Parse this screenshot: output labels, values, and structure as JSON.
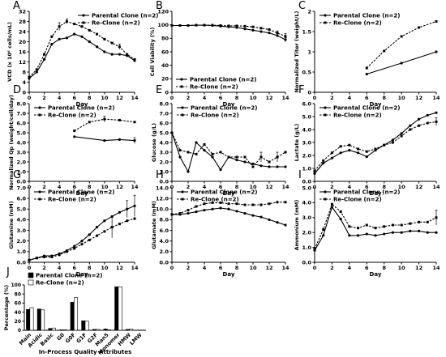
{
  "figure": {
    "legend_parent": "Parental Clone (n=2)",
    "legend_reclone": "Re-Clone (n=2)"
  },
  "chart_data": [
    {
      "panel": "A",
      "type": "line",
      "xlabel": "Day",
      "ylabel": "VCD (x 10⁶ cells/mL)",
      "xlim": [
        0,
        14
      ],
      "ylim": [
        0,
        32
      ],
      "xticks": [
        0,
        2,
        4,
        6,
        8,
        10,
        12,
        14
      ],
      "yticks": [
        0,
        4,
        8,
        12,
        16,
        20,
        24,
        28,
        32
      ],
      "series": [
        {
          "name": "Parental Clone (n=2)",
          "style": "solid",
          "x": [
            0,
            1,
            2,
            3,
            4,
            5,
            6,
            7,
            8,
            9,
            10,
            11,
            12,
            13,
            14
          ],
          "y": [
            5.5,
            8,
            13,
            19,
            21,
            21.5,
            23,
            22,
            20,
            18,
            16,
            15,
            15,
            14.5,
            12.5
          ],
          "err": [
            0,
            0,
            0,
            0,
            0,
            0,
            0,
            0,
            0,
            0,
            0,
            0,
            0,
            0,
            0
          ]
        },
        {
          "name": "Re-Clone (n=2)",
          "style": "dashed",
          "x": [
            0,
            1,
            2,
            3,
            4,
            5,
            6,
            7,
            8,
            9,
            10,
            11,
            12,
            13,
            14
          ],
          "y": [
            6,
            9,
            15,
            22,
            26,
            28,
            27,
            26,
            24.5,
            23,
            21,
            19.5,
            18,
            15,
            13
          ],
          "err": [
            0,
            0,
            0,
            0,
            1.5,
            1,
            0,
            0,
            0,
            0,
            0,
            0,
            1,
            0,
            0
          ]
        }
      ],
      "legend": "top-right"
    },
    {
      "panel": "B",
      "type": "line",
      "xlabel": "Day",
      "ylabel": "Cell Viability (%)",
      "xlim": [
        0,
        14
      ],
      "ylim": [
        0,
        120
      ],
      "xticks": [
        0,
        2,
        4,
        6,
        8,
        10,
        12,
        14
      ],
      "yticks": [
        0,
        20,
        40,
        60,
        80,
        100,
        120
      ],
      "series": [
        {
          "name": "Parental Clone (n=2)",
          "style": "solid",
          "x": [
            0,
            1,
            2,
            3,
            4,
            5,
            6,
            7,
            8,
            9,
            10,
            11,
            12,
            13,
            14
          ],
          "y": [
            99,
            99,
            99,
            99.5,
            99.5,
            99,
            98,
            97,
            96,
            94,
            92,
            90,
            88,
            84,
            78
          ],
          "err": [
            0,
            0,
            0,
            0,
            0,
            0,
            0,
            0,
            0,
            0,
            0,
            0,
            0,
            0,
            3
          ]
        },
        {
          "name": "Re-Clone (n=2)",
          "style": "dashed",
          "x": [
            0,
            1,
            2,
            3,
            4,
            5,
            6,
            7,
            8,
            9,
            10,
            11,
            12,
            13,
            14
          ],
          "y": [
            99,
            99,
            99,
            99.5,
            99.5,
            99.5,
            99,
            98.5,
            98.5,
            98,
            97,
            95,
            93,
            88,
            83
          ],
          "err": [
            0,
            0,
            0,
            0,
            0,
            0,
            0,
            0,
            0,
            0,
            0,
            0,
            0,
            3,
            4
          ]
        }
      ],
      "legend": "bottom-left"
    },
    {
      "panel": "C",
      "type": "line",
      "xlabel": "Day",
      "ylabel": "Normalized Titer (weight/L)",
      "xlim": [
        0,
        14
      ],
      "ylim": [
        0,
        2
      ],
      "xticks": [
        0,
        2,
        4,
        6,
        8,
        10,
        12,
        14
      ],
      "yticks": [
        0,
        0.5,
        1,
        1.5,
        2
      ],
      "series": [
        {
          "name": "Parental Clone (n=2)",
          "style": "solid",
          "x": [
            6,
            10,
            14
          ],
          "y": [
            0.45,
            0.72,
            1.0
          ],
          "err": [
            0,
            0,
            0
          ]
        },
        {
          "name": "Re-Clone (n=2)",
          "style": "dashed",
          "x": [
            6,
            8,
            10,
            12,
            14
          ],
          "y": [
            0.6,
            1.02,
            1.38,
            1.6,
            1.75
          ],
          "err": [
            0,
            0,
            0,
            0,
            0
          ]
        }
      ],
      "legend": "top-left"
    },
    {
      "panel": "D",
      "type": "line",
      "xlabel": "Day",
      "ylabel": "Normalized Qp (weight/cell/day)",
      "xlim": [
        0,
        14
      ],
      "ylim": [
        0,
        8
      ],
      "xticks": [
        0,
        2,
        4,
        6,
        8,
        10,
        12,
        14
      ],
      "yticks": [
        0,
        1,
        2,
        3,
        4,
        5,
        6,
        7,
        8
      ],
      "series": [
        {
          "name": "Parental Clone (n=2)",
          "style": "solid",
          "x": [
            6,
            10,
            12,
            14
          ],
          "y": [
            4.6,
            4.2,
            4.3,
            4.2
          ],
          "err": [
            0,
            0,
            0,
            0.3
          ]
        },
        {
          "name": "Re-Clone (n=2)",
          "style": "dashed",
          "x": [
            6,
            8,
            10,
            12,
            14
          ],
          "y": [
            5.2,
            6.1,
            6.4,
            6.3,
            6.1
          ],
          "err": [
            0,
            0,
            0.3,
            0,
            0
          ]
        }
      ],
      "legend": "top-left"
    },
    {
      "panel": "E",
      "type": "line",
      "xlabel": "Day",
      "ylabel": "Glucose (g/L)",
      "xlim": [
        0,
        14
      ],
      "ylim": [
        0,
        8
      ],
      "xticks": [
        0,
        2,
        4,
        6,
        8,
        10,
        12,
        14
      ],
      "yticks": [
        0,
        1,
        2,
        3,
        4,
        5,
        6,
        7,
        8
      ],
      "series": [
        {
          "name": "Parental Clone (n=2)",
          "style": "solid",
          "x": [
            0,
            1,
            2,
            3,
            4,
            5,
            6,
            7,
            8,
            9,
            10,
            11,
            12,
            13,
            14
          ],
          "y": [
            5.0,
            2.5,
            1.0,
            4.0,
            3.2,
            2.5,
            1.2,
            2.5,
            2.2,
            2.0,
            1.8,
            1.6,
            1.5,
            1.5,
            1.5
          ],
          "err": [
            0,
            0,
            0,
            0,
            0,
            0,
            0,
            0,
            0,
            0,
            0,
            0,
            0,
            0,
            0
          ]
        },
        {
          "name": "Re-Clone (n=2)",
          "style": "dashed",
          "x": [
            0,
            1,
            2,
            3,
            4,
            5,
            6,
            7,
            8,
            9,
            10,
            11,
            12,
            13,
            14
          ],
          "y": [
            5.0,
            3.2,
            3.0,
            2.8,
            3.8,
            2.8,
            3.0,
            2.5,
            2.5,
            2.5,
            1.5,
            2.5,
            2.0,
            2.5,
            3.0
          ],
          "err": [
            0,
            0,
            0,
            0,
            0,
            0,
            0,
            0,
            0,
            0,
            0,
            0.5,
            0,
            0.5,
            0
          ]
        }
      ],
      "legend": "top-left"
    },
    {
      "panel": "F",
      "type": "line",
      "xlabel": "Day",
      "ylabel": "Lactate (g/L)",
      "xlim": [
        0,
        14
      ],
      "ylim": [
        0,
        6
      ],
      "xticks": [
        0,
        2,
        4,
        6,
        8,
        10,
        12,
        14
      ],
      "yticks": [
        0,
        1,
        2,
        3,
        4,
        5,
        6
      ],
      "series": [
        {
          "name": "Parental Clone (n=2)",
          "style": "solid",
          "x": [
            0,
            1,
            2,
            3,
            4,
            5,
            6,
            7,
            8,
            9,
            10,
            11,
            12,
            13,
            14
          ],
          "y": [
            0.6,
            1.4,
            1.8,
            2.2,
            2.4,
            2.2,
            1.9,
            2.4,
            2.8,
            3.2,
            3.7,
            4.3,
            4.8,
            5.1,
            5.3
          ],
          "err": [
            0,
            0,
            0,
            0,
            0,
            0,
            0,
            0,
            0,
            0,
            0,
            0,
            0,
            0,
            0
          ]
        },
        {
          "name": "Re-Clone (n=2)",
          "style": "dashed",
          "x": [
            0,
            1,
            2,
            3,
            4,
            5,
            6,
            7,
            8,
            9,
            10,
            11,
            12,
            13,
            14
          ],
          "y": [
            0.8,
            1.6,
            2.2,
            2.7,
            2.8,
            2.5,
            2.3,
            2.5,
            2.8,
            3.0,
            3.5,
            4.0,
            4.3,
            4.5,
            4.6
          ],
          "err": [
            0,
            0,
            0,
            0,
            0,
            0,
            0,
            0,
            0,
            0,
            0,
            0,
            0,
            0,
            0.3
          ]
        }
      ],
      "legend": "top-left"
    },
    {
      "panel": "G",
      "type": "line",
      "xlabel": "Day",
      "ylabel": "Glutamine (mM)",
      "xlim": [
        0,
        14
      ],
      "ylim": [
        0,
        7
      ],
      "xticks": [
        0,
        2,
        4,
        6,
        8,
        10,
        12,
        14
      ],
      "yticks": [
        0,
        1,
        2,
        3,
        4,
        5,
        6,
        7
      ],
      "series": [
        {
          "name": "Parental Clone (n=2)",
          "style": "solid",
          "x": [
            0,
            1,
            2,
            3,
            4,
            5,
            6,
            7,
            8,
            9,
            10,
            11,
            12,
            13,
            14
          ],
          "y": [
            0.2,
            0.4,
            0.6,
            0.6,
            0.8,
            1.1,
            1.5,
            2.0,
            2.6,
            3.3,
            3.9,
            4.3,
            4.7,
            5.0,
            5.3
          ],
          "err": [
            0,
            0,
            0,
            0,
            0,
            0,
            0,
            0,
            0,
            0,
            0,
            0,
            0,
            0.8,
            1.0
          ]
        },
        {
          "name": "Re-Clone (n=2)",
          "style": "dashed",
          "x": [
            0,
            1,
            2,
            3,
            4,
            5,
            6,
            7,
            8,
            9,
            10,
            11,
            12,
            13,
            14
          ],
          "y": [
            0.2,
            0.4,
            0.5,
            0.5,
            0.7,
            1.0,
            1.3,
            1.7,
            2.1,
            2.5,
            2.9,
            3.3,
            3.6,
            3.9,
            4.1
          ],
          "err": [
            0,
            0,
            0,
            0,
            0,
            0,
            0,
            0,
            0,
            0,
            0,
            1.0,
            0,
            0,
            0
          ]
        }
      ],
      "legend": "top-left"
    },
    {
      "panel": "H",
      "type": "line",
      "xlabel": "Day",
      "ylabel": "Glutamate (mM)",
      "xlim": [
        0,
        14
      ],
      "ylim": [
        0,
        14
      ],
      "xticks": [
        0,
        2,
        4,
        6,
        8,
        10,
        12,
        14
      ],
      "yticks": [
        0,
        2,
        4,
        6,
        8,
        10,
        12,
        14
      ],
      "series": [
        {
          "name": "Parental Clone (n=2)",
          "style": "solid",
          "x": [
            0,
            1,
            2,
            3,
            4,
            5,
            6,
            7,
            8,
            9,
            10,
            11,
            12,
            13,
            14
          ],
          "y": [
            9.0,
            9.0,
            9.2,
            9.5,
            9.8,
            10.0,
            10.2,
            10.0,
            9.6,
            9.2,
            8.8,
            8.5,
            8.0,
            7.5,
            7.0
          ],
          "err": [
            0,
            0,
            0,
            0,
            0,
            0,
            0,
            0,
            0,
            0,
            0,
            0,
            0,
            0,
            0
          ]
        },
        {
          "name": "Re-Clone (n=2)",
          "style": "dashed",
          "x": [
            0,
            1,
            2,
            3,
            4,
            5,
            6,
            7,
            8,
            9,
            10,
            11,
            12,
            13,
            14
          ],
          "y": [
            9.0,
            9.2,
            9.8,
            10.5,
            11.0,
            11.2,
            11.2,
            11.0,
            11.0,
            10.8,
            10.8,
            10.8,
            11.0,
            11.3,
            11.3
          ],
          "err": [
            0,
            0,
            0,
            0,
            0,
            0,
            0,
            0,
            0,
            0,
            0,
            0,
            0,
            0,
            0
          ]
        }
      ],
      "legend": "top-left"
    },
    {
      "panel": "I",
      "type": "line",
      "xlabel": "Day",
      "ylabel": "Ammonium (mM)",
      "xlim": [
        0,
        14
      ],
      "ylim": [
        0,
        5
      ],
      "xticks": [
        0,
        2,
        4,
        6,
        8,
        10,
        12,
        14
      ],
      "yticks": [
        0,
        1,
        2,
        3,
        4,
        5
      ],
      "series": [
        {
          "name": "Parental Clone (n=2)",
          "style": "solid",
          "x": [
            0,
            1,
            2,
            3,
            4,
            5,
            6,
            7,
            8,
            9,
            10,
            11,
            12,
            13,
            14
          ],
          "y": [
            0.8,
            1.8,
            3.7,
            2.9,
            1.8,
            1.8,
            1.9,
            1.8,
            1.9,
            2.0,
            2.0,
            2.1,
            2.1,
            2.0,
            2.0
          ],
          "err": [
            0,
            0,
            0,
            0,
            0,
            0,
            0,
            0,
            0,
            0,
            0,
            0,
            0,
            0,
            0
          ]
        },
        {
          "name": "Re-Clone (n=2)",
          "style": "dashed",
          "x": [
            0,
            1,
            2,
            3,
            4,
            5,
            6,
            7,
            8,
            9,
            10,
            11,
            12,
            13,
            14
          ],
          "y": [
            0.9,
            2.2,
            3.9,
            3.4,
            2.4,
            2.3,
            2.5,
            2.3,
            2.4,
            2.5,
            2.5,
            2.6,
            2.7,
            2.7,
            3.0
          ],
          "err": [
            0,
            0,
            0,
            0,
            0,
            0,
            0,
            0,
            0,
            0,
            0,
            0,
            0,
            0,
            0.5
          ]
        }
      ],
      "legend": "top-left"
    },
    {
      "panel": "J",
      "type": "bar",
      "xlabel": "In-Process Quality Attributes",
      "ylabel": "Percentage (%)",
      "ylim": [
        0,
        100
      ],
      "yticks": [
        0,
        20,
        40,
        60,
        80,
        100
      ],
      "categories": [
        "Main",
        "Acidic",
        "Basic",
        "G0",
        "G0F",
        "G1F",
        "G2F",
        "Man5",
        "Monomer",
        "HMW",
        "LMW"
      ],
      "series": [
        {
          "name": "Parental Clone (n=2)",
          "color": "#000000",
          "values": [
            46,
            47,
            4,
            1,
            62,
            21,
            2,
            3,
            96,
            2,
            0.5
          ]
        },
        {
          "name": "Re-Clone (n=2)",
          "color": "#ffffff",
          "values": [
            50,
            45,
            5,
            1,
            72,
            20,
            2,
            1,
            96,
            3,
            0.5
          ]
        }
      ],
      "legend": "top-left"
    }
  ]
}
